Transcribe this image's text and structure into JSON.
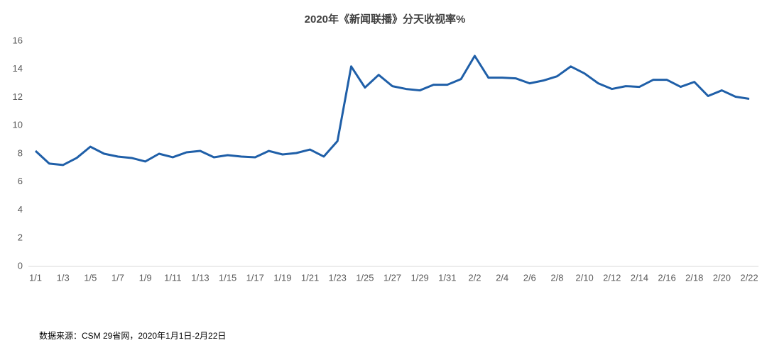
{
  "chart_data": {
    "type": "line",
    "title": "2020年《新闻联播》分天收视率%",
    "footnote": "数据来源：CSM 29省网，2020年1月1日-2月22日",
    "categories": [
      "1/1",
      null,
      "1/3",
      null,
      "1/5",
      null,
      "1/7",
      null,
      "1/9",
      null,
      "1/11",
      null,
      "1/13",
      null,
      "1/15",
      null,
      "1/17",
      null,
      "1/19",
      null,
      "1/21",
      null,
      "1/23",
      null,
      "1/25",
      null,
      "1/27",
      null,
      "1/29",
      null,
      "1/31",
      null,
      "2/2",
      null,
      "2/4",
      null,
      "2/6",
      null,
      "2/8",
      null,
      "2/10",
      null,
      "2/12",
      null,
      "2/14",
      null,
      "2/16",
      null,
      "2/18",
      null,
      "2/20",
      null,
      "2/22"
    ],
    "series": [
      {
        "color": "#1f5fa8",
        "values": [
          8.2,
          7.3,
          7.2,
          7.7,
          8.5,
          8.0,
          7.8,
          7.7,
          7.45,
          8.0,
          7.75,
          8.1,
          8.2,
          7.75,
          7.9,
          7.8,
          7.75,
          8.2,
          7.95,
          8.05,
          8.3,
          7.8,
          8.9,
          14.2,
          12.7,
          13.6,
          12.8,
          12.6,
          12.5,
          12.9,
          12.9,
          13.3,
          14.95,
          13.4,
          13.4,
          13.35,
          13.0,
          13.2,
          13.5,
          14.2,
          13.7,
          13.0,
          12.6,
          12.8,
          12.75,
          13.25,
          13.25,
          12.75,
          13.1,
          12.1,
          12.5,
          12.05,
          11.9
        ]
      }
    ],
    "ylim": [
      0,
      16
    ],
    "yticks": [
      0,
      2,
      4,
      6,
      8,
      10,
      12,
      14,
      16
    ],
    "grid": false
  }
}
